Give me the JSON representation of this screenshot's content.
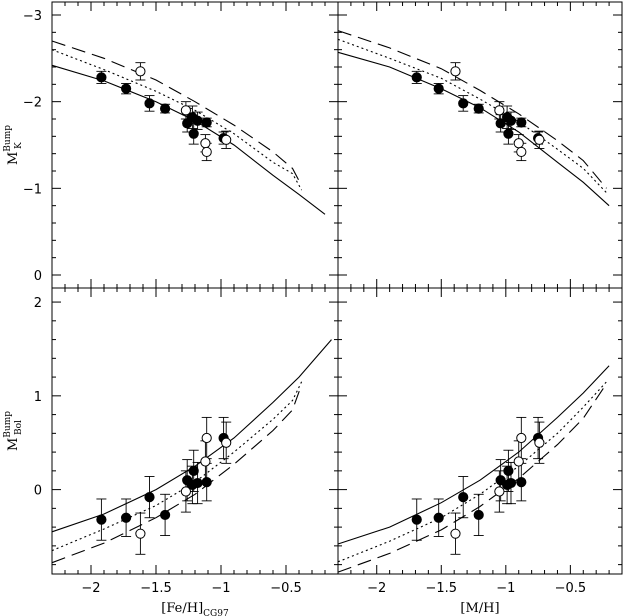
{
  "chart_data": [
    {
      "type": "scatter",
      "panel": "top-left",
      "ylabel": "M",
      "ylabel_sub": "K",
      "ylabel_sup": "Bump",
      "xlabel": "",
      "xlim": [
        -2.3,
        -0.1
      ],
      "ylim": [
        0.15,
        -3.15
      ],
      "xticks": [
        -2,
        -1.5,
        -1,
        -0.5
      ],
      "xticklabels": [],
      "yticks": [
        -3,
        -2,
        -1,
        0
      ],
      "yticklabels": [
        "−3",
        "−2",
        "−1",
        "0"
      ],
      "series": [
        {
          "style": "filled",
          "points": [
            {
              "x": -1.92,
              "y": -2.28,
              "err": 0.07
            },
            {
              "x": -1.73,
              "y": -2.15,
              "err": 0.06
            },
            {
              "x": -1.55,
              "y": -1.98,
              "err": 0.09
            },
            {
              "x": -1.43,
              "y": -1.92,
              "err": 0.05
            },
            {
              "x": -1.26,
              "y": -1.75,
              "err": 0.1
            },
            {
              "x": -1.22,
              "y": -1.82,
              "err": 0.13
            },
            {
              "x": -1.21,
              "y": -1.63,
              "err": 0.12
            },
            {
              "x": -1.18,
              "y": -1.78,
              "err": 0.1
            },
            {
              "x": -1.11,
              "y": -1.76,
              "err": 0.05
            },
            {
              "x": -0.98,
              "y": -1.58,
              "err": 0.07
            }
          ]
        },
        {
          "style": "open",
          "points": [
            {
              "x": -1.62,
              "y": -2.35,
              "err": 0.1
            },
            {
              "x": -1.27,
              "y": -1.9,
              "err": 0.1
            },
            {
              "x": -1.12,
              "y": -1.52,
              "err": 0.1
            },
            {
              "x": -1.11,
              "y": -1.42,
              "err": 0.1
            },
            {
              "x": -0.96,
              "y": -1.56,
              "err": 0.1
            }
          ]
        }
      ],
      "curves": [
        {
          "style": "solid",
          "points": [
            [
              -2.3,
              -2.42
            ],
            [
              -1.9,
              -2.24
            ],
            [
              -1.5,
              -2.0
            ],
            [
              -1.2,
              -1.78
            ],
            [
              -0.9,
              -1.5
            ],
            [
              -0.6,
              -1.15
            ],
            [
              -0.4,
              -0.93
            ],
            [
              -0.2,
              -0.7
            ]
          ]
        },
        {
          "style": "dotted",
          "points": [
            [
              -2.3,
              -2.6
            ],
            [
              -1.9,
              -2.37
            ],
            [
              -1.5,
              -2.12
            ],
            [
              -1.2,
              -1.9
            ],
            [
              -0.9,
              -1.63
            ],
            [
              -0.6,
              -1.3
            ],
            [
              -0.45,
              -1.17
            ],
            [
              -0.38,
              -0.98
            ]
          ]
        },
        {
          "style": "dashed",
          "points": [
            [
              -2.3,
              -2.7
            ],
            [
              -1.9,
              -2.5
            ],
            [
              -1.5,
              -2.25
            ],
            [
              -1.2,
              -2.0
            ],
            [
              -0.9,
              -1.73
            ],
            [
              -0.6,
              -1.42
            ],
            [
              -0.45,
              -1.23
            ],
            [
              -0.38,
              -1.03
            ]
          ]
        }
      ]
    },
    {
      "type": "scatter",
      "panel": "top-right",
      "ylabel": "",
      "xlabel": "",
      "xlim": [
        -2.3,
        -0.1
      ],
      "ylim": [
        0.15,
        -3.15
      ],
      "xticks": [
        -2,
        -1.5,
        -1,
        -0.5
      ],
      "xticklabels": [],
      "yticks": [
        -3,
        -2,
        -1,
        0
      ],
      "yticklabels": [],
      "series": [
        {
          "style": "filled",
          "points": [
            {
              "x": -1.69,
              "y": -2.28,
              "err": 0.07
            },
            {
              "x": -1.52,
              "y": -2.15,
              "err": 0.06
            },
            {
              "x": -1.33,
              "y": -1.98,
              "err": 0.09
            },
            {
              "x": -1.21,
              "y": -1.92,
              "err": 0.05
            },
            {
              "x": -1.04,
              "y": -1.75,
              "err": 0.1
            },
            {
              "x": -0.99,
              "y": -1.82,
              "err": 0.13
            },
            {
              "x": -0.98,
              "y": -1.63,
              "err": 0.12
            },
            {
              "x": -0.96,
              "y": -1.78,
              "err": 0.1
            },
            {
              "x": -0.88,
              "y": -1.76,
              "err": 0.05
            },
            {
              "x": -0.75,
              "y": -1.58,
              "err": 0.07
            }
          ]
        },
        {
          "style": "open",
          "points": [
            {
              "x": -1.39,
              "y": -2.35,
              "err": 0.1
            },
            {
              "x": -1.05,
              "y": -1.9,
              "err": 0.1
            },
            {
              "x": -0.9,
              "y": -1.52,
              "err": 0.1
            },
            {
              "x": -0.88,
              "y": -1.42,
              "err": 0.1
            },
            {
              "x": -0.74,
              "y": -1.56,
              "err": 0.1
            }
          ]
        }
      ],
      "curves": [
        {
          "style": "solid",
          "points": [
            [
              -2.3,
              -2.57
            ],
            [
              -1.9,
              -2.4
            ],
            [
              -1.5,
              -2.15
            ],
            [
              -1.2,
              -1.93
            ],
            [
              -0.9,
              -1.65
            ],
            [
              -0.6,
              -1.3
            ],
            [
              -0.4,
              -1.07
            ],
            [
              -0.2,
              -0.8
            ]
          ]
        },
        {
          "style": "dotted",
          "points": [
            [
              -2.3,
              -2.72
            ],
            [
              -1.9,
              -2.5
            ],
            [
              -1.5,
              -2.27
            ],
            [
              -1.2,
              -2.03
            ],
            [
              -0.9,
              -1.77
            ],
            [
              -0.6,
              -1.45
            ],
            [
              -0.4,
              -1.23
            ],
            [
              -0.22,
              -0.95
            ]
          ]
        },
        {
          "style": "dashed",
          "points": [
            [
              -2.3,
              -2.82
            ],
            [
              -1.9,
              -2.62
            ],
            [
              -1.5,
              -2.38
            ],
            [
              -1.2,
              -2.13
            ],
            [
              -0.9,
              -1.86
            ],
            [
              -0.6,
              -1.55
            ],
            [
              -0.4,
              -1.32
            ],
            [
              -0.22,
              -1.0
            ]
          ]
        }
      ]
    },
    {
      "type": "scatter",
      "panel": "bottom-left",
      "ylabel": "M",
      "ylabel_sub": "Bol",
      "ylabel_sup": "Bump",
      "xlabel": "[Fe/H]",
      "xlabel_sub": "CG97",
      "xlim": [
        -2.3,
        -0.1
      ],
      "ylim": [
        -0.9,
        2.15
      ],
      "xticks": [
        -2,
        -1.5,
        -1,
        -0.5
      ],
      "xticklabels": [
        "−2",
        "−1.5",
        "−1",
        "−0.5"
      ],
      "yticks": [
        0,
        1,
        2
      ],
      "yticklabels": [
        "0",
        "1",
        "2"
      ],
      "series": [
        {
          "style": "filled",
          "points": [
            {
              "x": -1.92,
              "y": -0.32,
              "err": 0.22
            },
            {
              "x": -1.73,
              "y": -0.3,
              "err": 0.2
            },
            {
              "x": -1.55,
              "y": -0.08,
              "err": 0.22
            },
            {
              "x": -1.43,
              "y": -0.27,
              "err": 0.22
            },
            {
              "x": -1.26,
              "y": 0.1,
              "err": 0.22
            },
            {
              "x": -1.22,
              "y": 0.05,
              "err": 0.2
            },
            {
              "x": -1.21,
              "y": 0.2,
              "err": 0.22
            },
            {
              "x": -1.18,
              "y": 0.07,
              "err": 0.22
            },
            {
              "x": -1.11,
              "y": 0.08,
              "err": 0.2
            },
            {
              "x": -0.98,
              "y": 0.55,
              "err": 0.22
            }
          ]
        },
        {
          "style": "open",
          "points": [
            {
              "x": -1.62,
              "y": -0.47,
              "err": 0.22
            },
            {
              "x": -1.27,
              "y": -0.02,
              "err": 0.22
            },
            {
              "x": -1.12,
              "y": 0.3,
              "err": 0.22
            },
            {
              "x": -1.11,
              "y": 0.55,
              "err": 0.22
            },
            {
              "x": -0.96,
              "y": 0.5,
              "err": 0.22
            }
          ]
        }
      ],
      "curves": [
        {
          "style": "solid",
          "points": [
            [
              -2.3,
              -0.45
            ],
            [
              -1.9,
              -0.26
            ],
            [
              -1.5,
              0.0
            ],
            [
              -1.2,
              0.25
            ],
            [
              -0.9,
              0.55
            ],
            [
              -0.6,
              0.93
            ],
            [
              -0.4,
              1.2
            ],
            [
              -0.15,
              1.6
            ]
          ]
        },
        {
          "style": "dotted",
          "points": [
            [
              -2.3,
              -0.65
            ],
            [
              -1.9,
              -0.42
            ],
            [
              -1.5,
              -0.17
            ],
            [
              -1.2,
              0.08
            ],
            [
              -0.9,
              0.4
            ],
            [
              -0.6,
              0.75
            ],
            [
              -0.45,
              0.95
            ],
            [
              -0.38,
              1.15
            ]
          ]
        },
        {
          "style": "dashed",
          "points": [
            [
              -2.3,
              -0.78
            ],
            [
              -1.9,
              -0.57
            ],
            [
              -1.5,
              -0.3
            ],
            [
              -1.2,
              -0.05
            ],
            [
              -0.9,
              0.27
            ],
            [
              -0.6,
              0.63
            ],
            [
              -0.45,
              0.85
            ],
            [
              -0.38,
              1.12
            ]
          ]
        }
      ]
    },
    {
      "type": "scatter",
      "panel": "bottom-right",
      "ylabel": "",
      "xlabel": "[M/H]",
      "xlim": [
        -2.3,
        -0.1
      ],
      "ylim": [
        -0.9,
        2.15
      ],
      "xticks": [
        -2,
        -1.5,
        -1,
        -0.5
      ],
      "xticklabels": [
        "−2",
        "−1.5",
        "−1",
        "−0.5"
      ],
      "yticks": [
        0,
        1,
        2
      ],
      "yticklabels": [],
      "series": [
        {
          "style": "filled",
          "points": [
            {
              "x": -1.69,
              "y": -0.32,
              "err": 0.22
            },
            {
              "x": -1.52,
              "y": -0.3,
              "err": 0.2
            },
            {
              "x": -1.33,
              "y": -0.08,
              "err": 0.22
            },
            {
              "x": -1.21,
              "y": -0.27,
              "err": 0.22
            },
            {
              "x": -1.04,
              "y": 0.1,
              "err": 0.22
            },
            {
              "x": -0.99,
              "y": 0.05,
              "err": 0.2
            },
            {
              "x": -0.98,
              "y": 0.2,
              "err": 0.22
            },
            {
              "x": -0.96,
              "y": 0.07,
              "err": 0.22
            },
            {
              "x": -0.88,
              "y": 0.08,
              "err": 0.2
            },
            {
              "x": -0.75,
              "y": 0.55,
              "err": 0.22
            }
          ]
        },
        {
          "style": "open",
          "points": [
            {
              "x": -1.39,
              "y": -0.47,
              "err": 0.22
            },
            {
              "x": -1.05,
              "y": -0.02,
              "err": 0.22
            },
            {
              "x": -0.9,
              "y": 0.3,
              "err": 0.22
            },
            {
              "x": -0.88,
              "y": 0.55,
              "err": 0.22
            },
            {
              "x": -0.74,
              "y": 0.5,
              "err": 0.22
            }
          ]
        }
      ],
      "curves": [
        {
          "style": "solid",
          "points": [
            [
              -2.3,
              -0.58
            ],
            [
              -1.9,
              -0.4
            ],
            [
              -1.5,
              -0.14
            ],
            [
              -1.2,
              0.1
            ],
            [
              -0.9,
              0.4
            ],
            [
              -0.6,
              0.77
            ],
            [
              -0.4,
              1.03
            ],
            [
              -0.2,
              1.32
            ]
          ]
        },
        {
          "style": "dotted",
          "points": [
            [
              -2.3,
              -0.77
            ],
            [
              -1.9,
              -0.55
            ],
            [
              -1.5,
              -0.3
            ],
            [
              -1.2,
              -0.05
            ],
            [
              -0.9,
              0.25
            ],
            [
              -0.6,
              0.6
            ],
            [
              -0.4,
              0.88
            ],
            [
              -0.22,
              1.15
            ]
          ]
        },
        {
          "style": "dashed",
          "points": [
            [
              -2.3,
              -0.88
            ],
            [
              -1.9,
              -0.68
            ],
            [
              -1.5,
              -0.43
            ],
            [
              -1.2,
              -0.18
            ],
            [
              -0.9,
              0.12
            ],
            [
              -0.6,
              0.48
            ],
            [
              -0.4,
              0.76
            ],
            [
              -0.22,
              1.13
            ]
          ]
        }
      ]
    }
  ]
}
